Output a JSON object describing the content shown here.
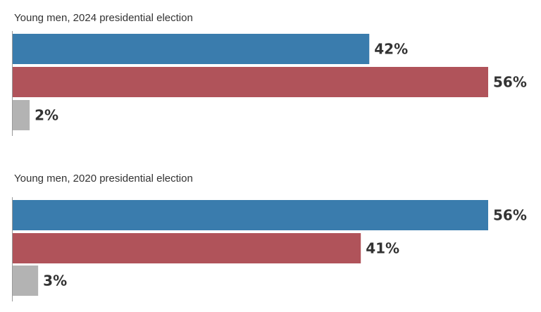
{
  "chart_data": [
    {
      "type": "bar",
      "orientation": "horizontal",
      "title": "Young men, 2024 presidential election",
      "categories": [
        "",
        "",
        ""
      ],
      "values": [
        42,
        56,
        2
      ],
      "value_labels": [
        "42%",
        "56%",
        "2%"
      ],
      "colors": [
        "#3a7cad",
        "#b0535a",
        "#b3b3b3"
      ],
      "xlim": [
        0,
        56
      ],
      "grid": false
    },
    {
      "type": "bar",
      "orientation": "horizontal",
      "title": "Young men, 2020 presidential election",
      "categories": [
        "",
        "",
        ""
      ],
      "values": [
        56,
        41,
        3
      ],
      "value_labels": [
        "56%",
        "41%",
        "3%"
      ],
      "colors": [
        "#3a7cad",
        "#b0535a",
        "#b3b3b3"
      ],
      "xlim": [
        0,
        56
      ],
      "grid": false
    }
  ]
}
